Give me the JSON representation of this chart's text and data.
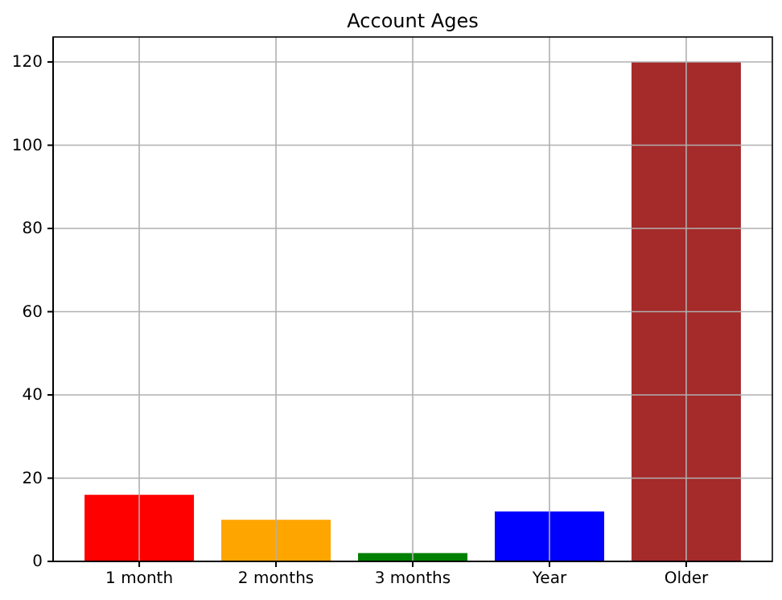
{
  "chart_data": {
    "type": "bar",
    "title": "Account Ages",
    "categories": [
      "1 month",
      "2 months",
      "3 months",
      "Year",
      "Older"
    ],
    "values": [
      16,
      10,
      2,
      12,
      120
    ],
    "colors": [
      "#ff0000",
      "#ffa500",
      "#008000",
      "#0000ff",
      "#a52a2a"
    ],
    "ylim": [
      0,
      126
    ],
    "yticks": [
      0,
      20,
      40,
      60,
      80,
      100,
      120
    ],
    "grid": true
  }
}
